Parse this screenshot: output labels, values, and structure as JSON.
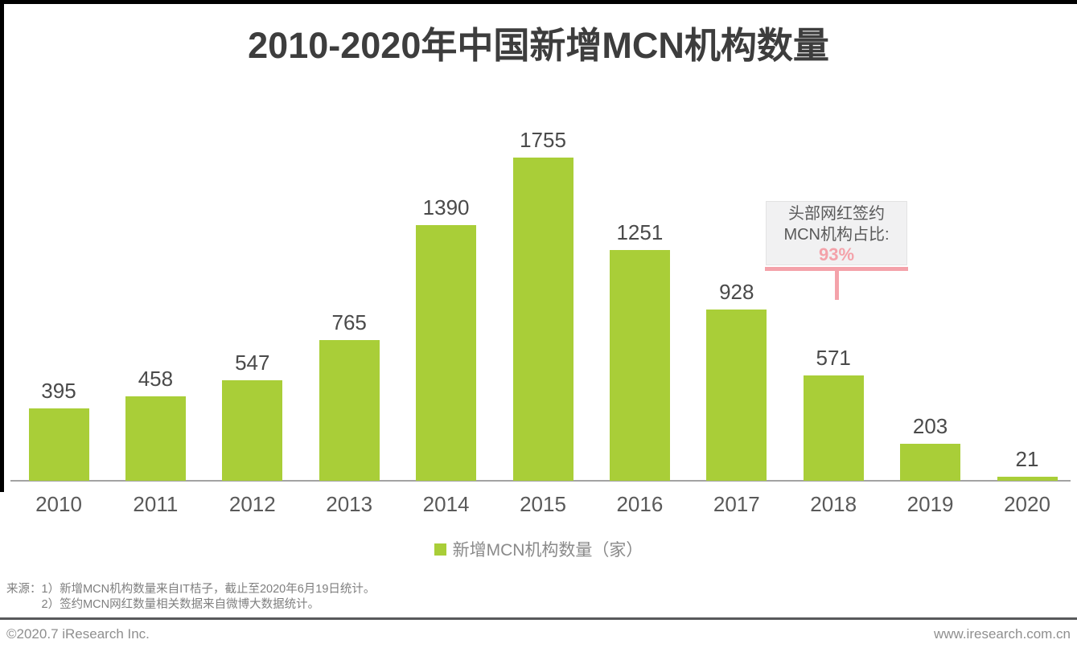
{
  "page": {
    "title": "2010-2020年中国新增MCN机构数量"
  },
  "chart_data": {
    "type": "bar",
    "title": "2010-2020年中国新增MCN机构数量",
    "categories": [
      "2010",
      "2011",
      "2012",
      "2013",
      "2014",
      "2015",
      "2016",
      "2017",
      "2018",
      "2019",
      "2020"
    ],
    "values": [
      395,
      458,
      547,
      765,
      1390,
      1755,
      1251,
      928,
      571,
      203,
      21
    ],
    "series_name": "新增MCN机构数量（家）",
    "xlabel": "",
    "ylabel": "",
    "ylim": [
      0,
      1755
    ],
    "grid": false,
    "value_labels_shown": true,
    "legend_position": "bottom-center",
    "bar_color": "#a9ce38",
    "annotation": {
      "lines": [
        "头部网红签约",
        "MCN机构占比:"
      ],
      "value": "93%",
      "target_category": "2018",
      "color": "#f4a2aa"
    }
  },
  "legend": {
    "label": "新增MCN机构数量（家）"
  },
  "source": {
    "label": "来源：",
    "notes": [
      "1）新增MCN机构数量来自IT桔子，截止至2020年6月19日统计。",
      "2）签约MCN网红数量相关数据来自微博大数据统计。"
    ]
  },
  "footer": {
    "left": "©2020.7 iResearch Inc.",
    "right": "www.iresearch.com.cn"
  },
  "colors": {
    "bar_green": "#a9ce38",
    "annotation_pink": "#f4a2aa",
    "title_text": "#3d3d3d",
    "axis_text": "#595959",
    "note_text": "#7f7f7f",
    "separator": "#58595b"
  }
}
